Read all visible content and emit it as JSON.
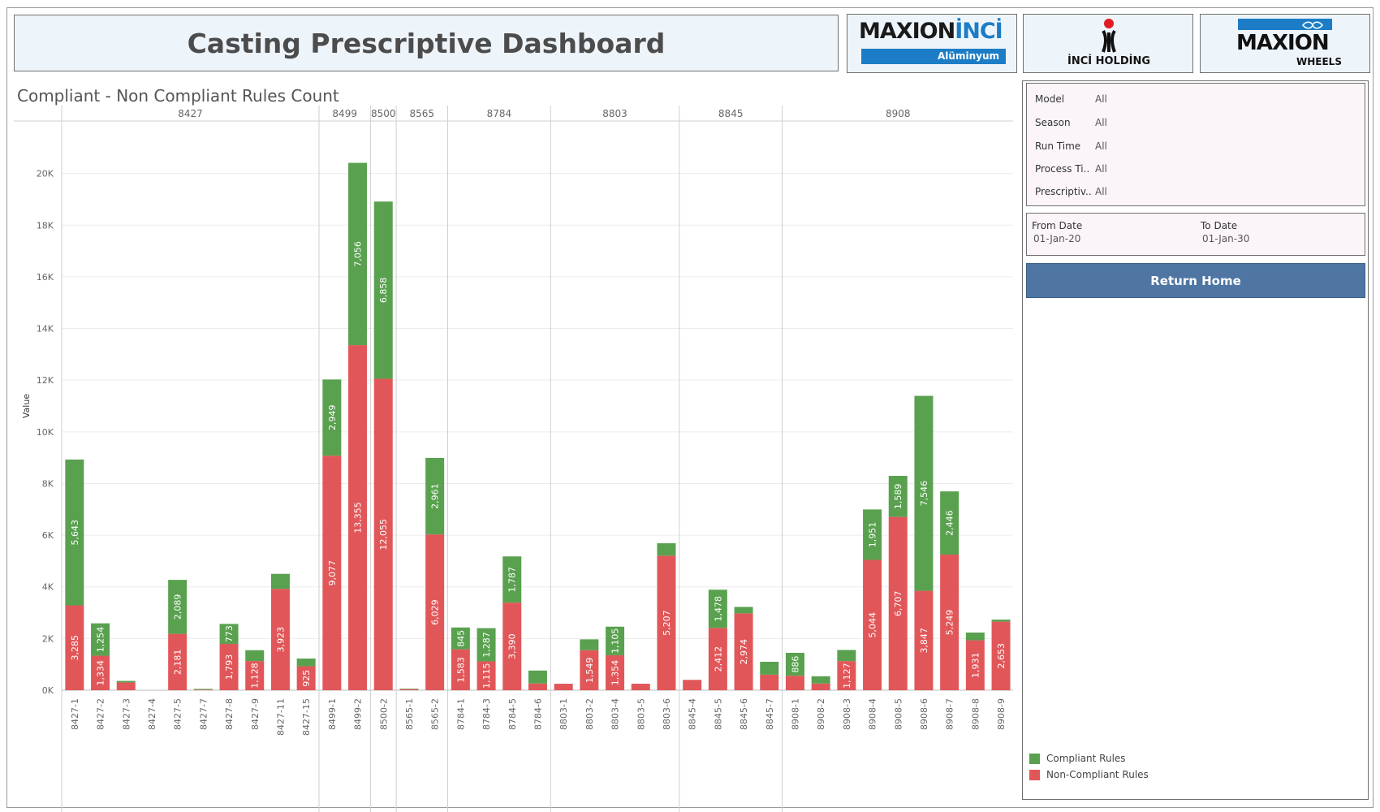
{
  "header": {
    "title": "Casting Prescriptive Dashboard"
  },
  "logos": {
    "maxion_inci": {
      "word1": "MAXION",
      "word2": "İNCİ",
      "sub": "Alüminyum"
    },
    "inci_holding": {
      "text": "İNCİ HOLDİNG"
    },
    "maxion_wheels": {
      "word": "MAXION",
      "sub": "WHEELS"
    }
  },
  "chart_title": "Compliant - Non Compliant Rules Count",
  "filters": [
    {
      "label": "Model",
      "value": "All"
    },
    {
      "label": "Season",
      "value": "All"
    },
    {
      "label": "Run Time",
      "value": "All"
    },
    {
      "label": "Process Ti..",
      "value": "All"
    },
    {
      "label": "Prescriptiv..",
      "value": "All"
    }
  ],
  "dates": {
    "from_label": "From Date",
    "from_value": "01-Jan-20",
    "to_label": "To Date",
    "to_value": "01-Jan-30"
  },
  "return_button": "Return Home",
  "legend": [
    {
      "label": "Compliant Rules",
      "color": "#59a14f"
    },
    {
      "label": "Non-Compliant Rules",
      "color": "#e15759"
    }
  ],
  "chart_data": {
    "type": "bar",
    "stacked": true,
    "ylabel": "Value",
    "ylim": [
      0,
      22000
    ],
    "yticks": [
      0,
      2000,
      4000,
      6000,
      8000,
      10000,
      12000,
      14000,
      16000,
      18000,
      20000
    ],
    "ytick_labels": [
      "0K",
      "2K",
      "4K",
      "6K",
      "8K",
      "10K",
      "12K",
      "14K",
      "16K",
      "18K",
      "20K"
    ],
    "groups": [
      {
        "name": "8427",
        "categories": [
          "8427-1",
          "8427-2",
          "8427-3",
          "8427-4",
          "8427-5",
          "8427-7",
          "8427-8",
          "8427-9",
          "8427-11",
          "8427-15"
        ]
      },
      {
        "name": "8499",
        "categories": [
          "8499-1",
          "8499-2"
        ]
      },
      {
        "name": "8500",
        "categories": [
          "8500-2"
        ]
      },
      {
        "name": "8565",
        "categories": [
          "8565-1",
          "8565-2"
        ]
      },
      {
        "name": "8784",
        "categories": [
          "8784-1",
          "8784-3",
          "8784-5",
          "8784-6"
        ]
      },
      {
        "name": "8803",
        "categories": [
          "8803-1",
          "8803-2",
          "8803-4",
          "8803-5",
          "8803-6"
        ]
      },
      {
        "name": "8845",
        "categories": [
          "8845-4",
          "8845-5",
          "8845-6",
          "8845-7"
        ]
      },
      {
        "name": "8908",
        "categories": [
          "8908-1",
          "8908-2",
          "8908-3",
          "8908-4",
          "8908-5",
          "8908-6",
          "8908-7",
          "8908-8",
          "8908-9"
        ]
      }
    ],
    "series": [
      {
        "name": "Non-Compliant Rules",
        "color": "#e15759",
        "values": [
          3285,
          1334,
          300,
          0,
          2181,
          20,
          1793,
          1128,
          3923,
          925,
          9077,
          13355,
          12055,
          40,
          6029,
          1583,
          1115,
          3390,
          260,
          250,
          1549,
          1354,
          250,
          5207,
          400,
          2412,
          2974,
          600,
          560,
          260,
          1127,
          5044,
          6707,
          3847,
          5249,
          1931,
          2653
        ],
        "labels": [
          "3,285",
          "1,334",
          "",
          "",
          "2,181",
          "",
          "1,793",
          "1,128",
          "3,923",
          "925",
          "9,077",
          "13,355",
          "12,055",
          "",
          "6,029",
          "1,583",
          "1,115",
          "3,390",
          "",
          "",
          "1,549",
          "1,354",
          "",
          "5,207",
          "",
          "2,412",
          "2,974",
          "",
          "",
          "",
          "1,127",
          "5,044",
          "6,707",
          "3,847",
          "5,249",
          "1,931",
          "2,653"
        ]
      },
      {
        "name": "Compliant Rules",
        "color": "#59a14f",
        "values": [
          5643,
          1254,
          60,
          0,
          2089,
          30,
          773,
          420,
          580,
          300,
          2949,
          7056,
          6858,
          20,
          2961,
          845,
          1287,
          1787,
          500,
          0,
          420,
          1105,
          0,
          480,
          0,
          1478,
          250,
          500,
          886,
          280,
          430,
          1951,
          1589,
          7546,
          2446,
          300,
          80
        ],
        "labels": [
          "5,643",
          "1,254",
          "",
          "",
          "2,089",
          "",
          "773",
          "",
          "",
          "",
          "2,949",
          "7,056",
          "6,858",
          "",
          "2,961",
          "845",
          "1,287",
          "1,787",
          "",
          "",
          "",
          "1,105",
          "",
          "",
          "",
          "1,478",
          "",
          "",
          "886",
          "",
          "",
          "1,951",
          "1,589",
          "7,546",
          "2,446",
          "",
          ""
        ]
      }
    ]
  }
}
